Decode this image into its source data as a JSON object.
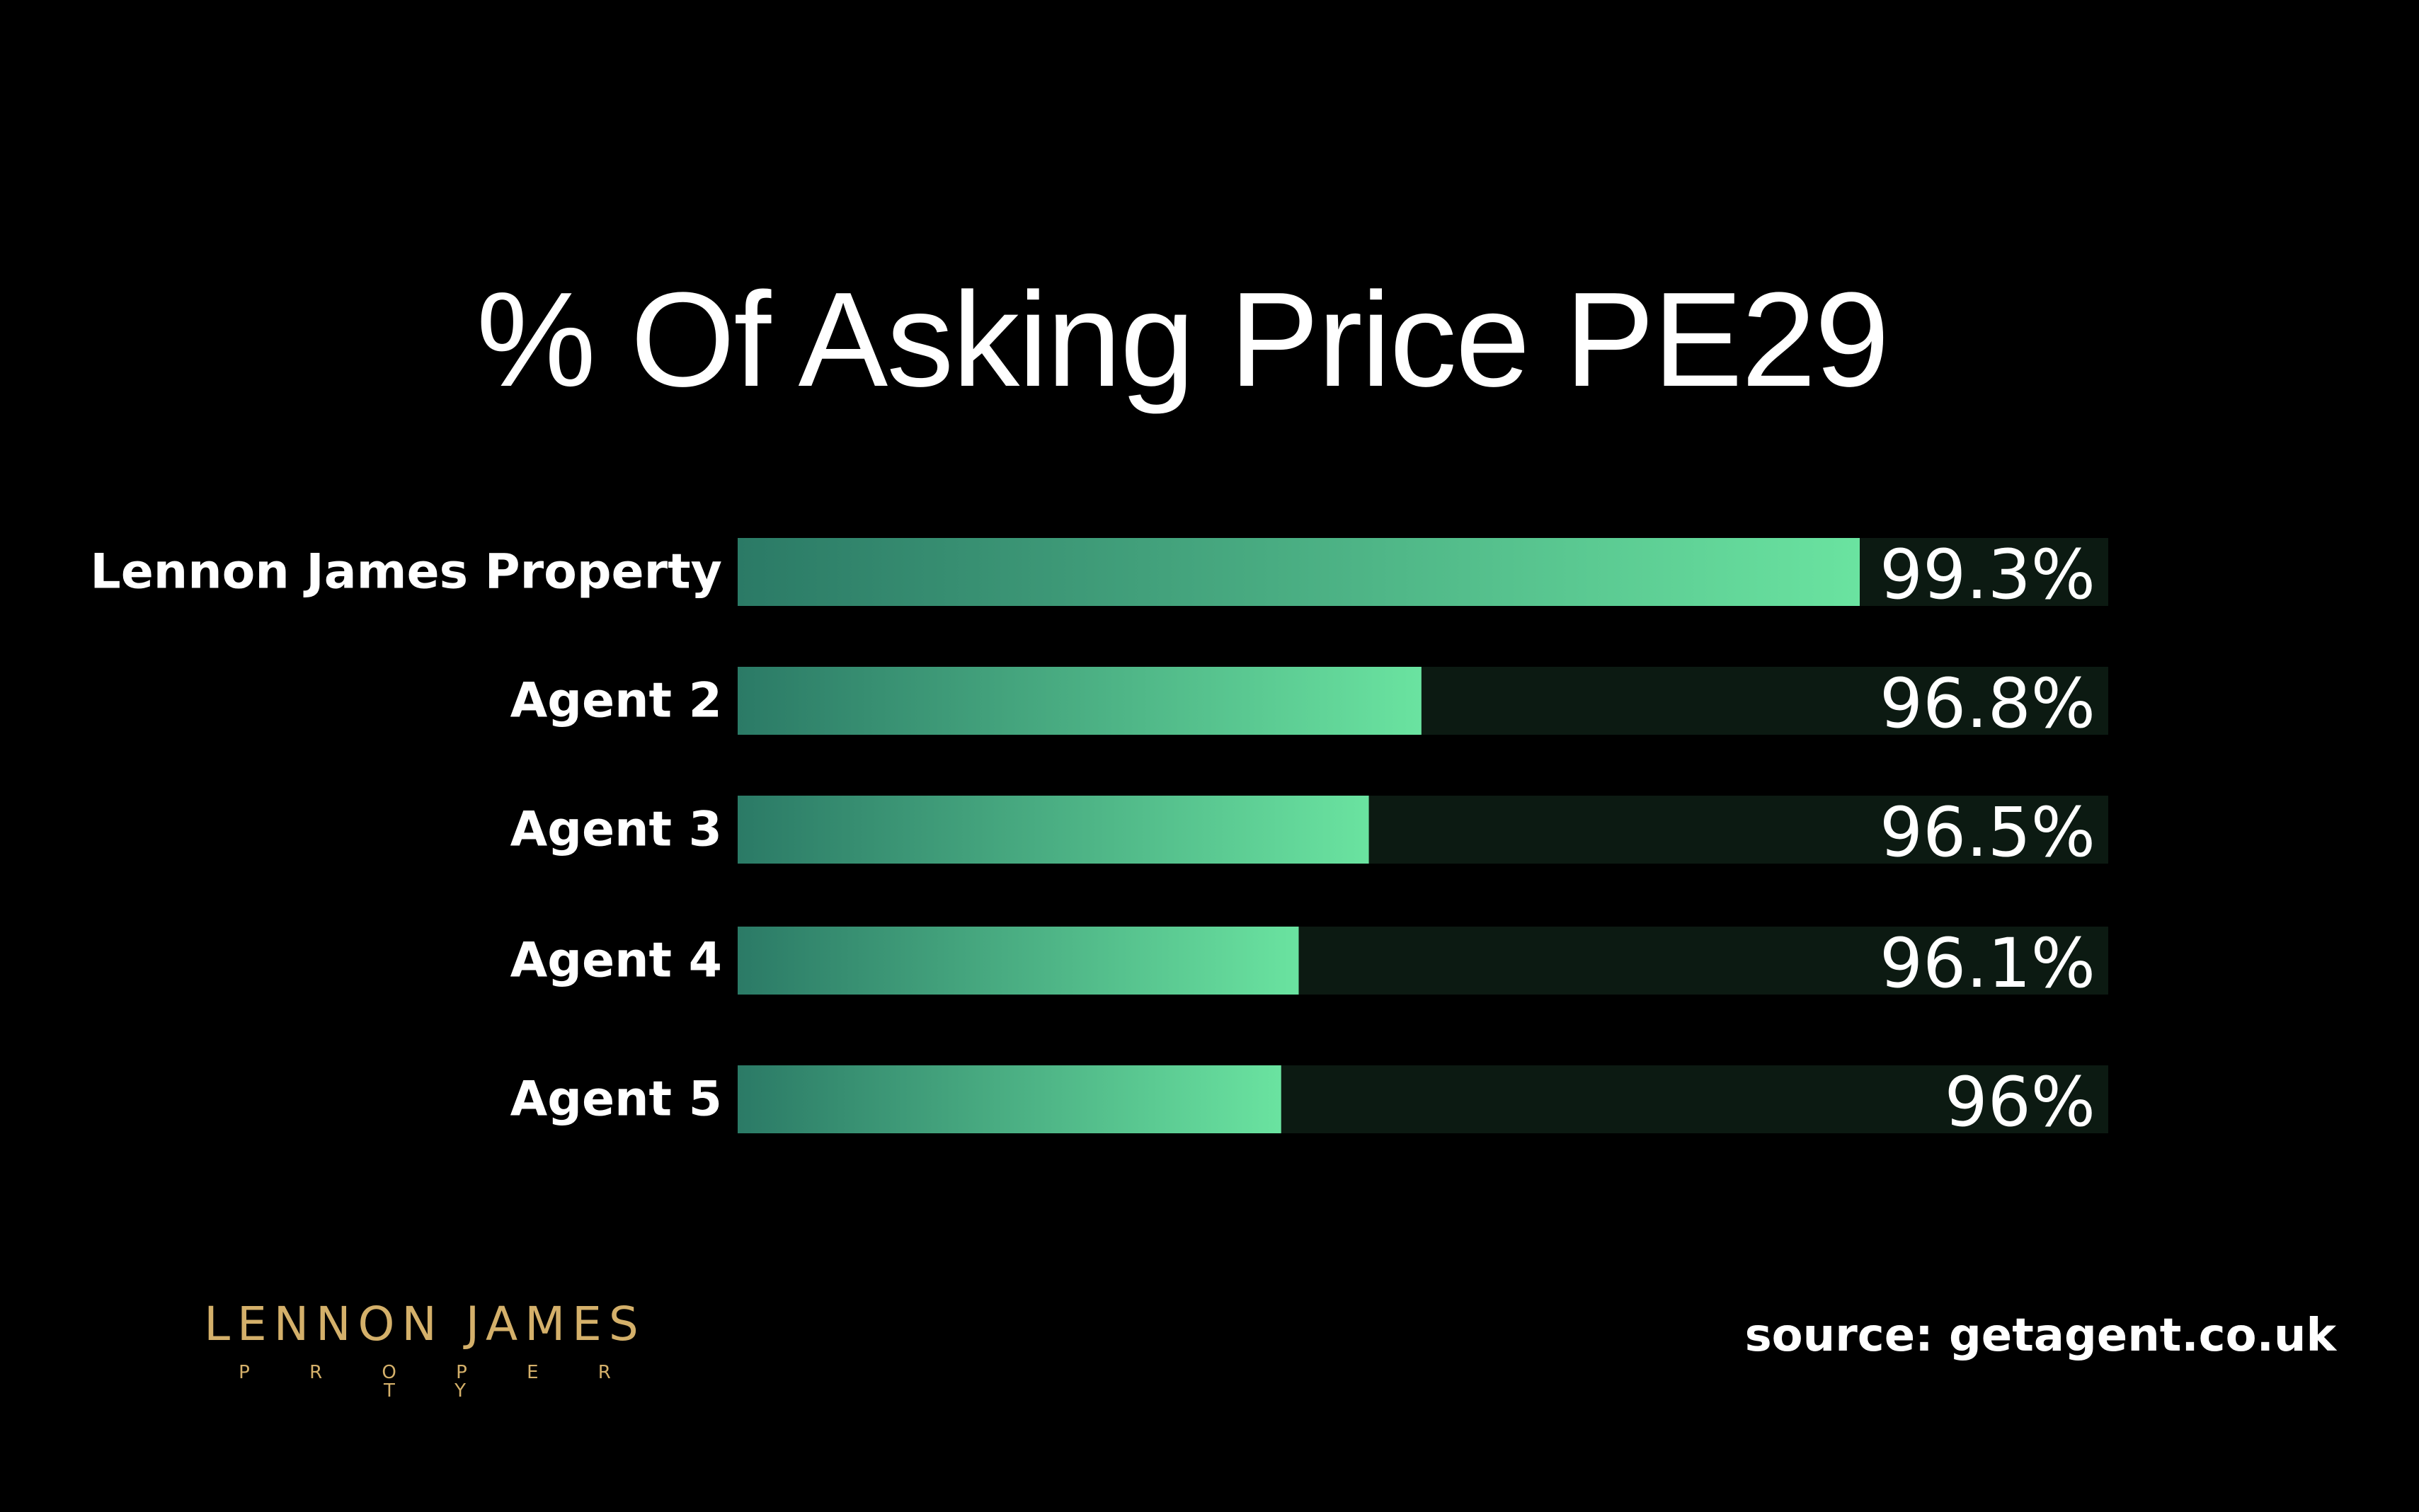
{
  "chart_data": {
    "type": "bar",
    "orientation": "horizontal",
    "title": "% Of Asking Price PE29",
    "categories": [
      "Lennon James Property",
      "Agent 2",
      "Agent 3",
      "Agent 4",
      "Agent 5"
    ],
    "values": [
      99.3,
      96.8,
      96.5,
      96.1,
      96
    ],
    "value_labels": [
      "99.3%",
      "96.8%",
      "96.5%",
      "96.1%",
      "96%"
    ],
    "unit": "%",
    "grid": false,
    "legend": "none",
    "colors": {
      "bar_start": "#2b7a66",
      "bar_end": "#6ae3a0",
      "track": "#0c1a12",
      "background": "#000000",
      "text": "#ffffff"
    }
  },
  "logo": {
    "name": "LENNON JAMES",
    "sub": "PROPERTY",
    "color": "#d4b06a"
  },
  "source_text": "source: getagent.co.uk"
}
